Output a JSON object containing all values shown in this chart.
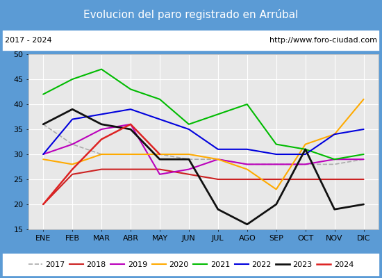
{
  "title": "Evolucion del paro registrado en Arrúbal",
  "subtitle_left": "2017 - 2024",
  "subtitle_right": "http://www.foro-ciudad.com",
  "months": [
    "ENE",
    "FEB",
    "MAR",
    "ABR",
    "MAY",
    "JUN",
    "JUL",
    "AGO",
    "SEP",
    "OCT",
    "NOV",
    "DIC"
  ],
  "ylim": [
    15,
    50
  ],
  "yticks": [
    15,
    20,
    25,
    30,
    35,
    40,
    45,
    50
  ],
  "series": {
    "2017": {
      "values": [
        36,
        32,
        30,
        30,
        30,
        29,
        29,
        28,
        28,
        28,
        28,
        29
      ],
      "color": "#aaaaaa",
      "linewidth": 1.2,
      "linestyle": "--"
    },
    "2018": {
      "values": [
        20,
        26,
        27,
        27,
        27,
        26,
        25,
        25,
        25,
        25,
        25,
        25
      ],
      "color": "#cc2222",
      "linewidth": 1.5,
      "linestyle": "-"
    },
    "2019": {
      "values": [
        30,
        32,
        35,
        36,
        26,
        27,
        29,
        28,
        28,
        28,
        29,
        29
      ],
      "color": "#bb00bb",
      "linewidth": 1.5,
      "linestyle": "-"
    },
    "2020": {
      "values": [
        29,
        28,
        30,
        30,
        30,
        30,
        29,
        27,
        23,
        32,
        34,
        41
      ],
      "color": "#ffaa00",
      "linewidth": 1.5,
      "linestyle": "-"
    },
    "2021": {
      "values": [
        42,
        45,
        47,
        43,
        41,
        36,
        38,
        40,
        32,
        31,
        29,
        30
      ],
      "color": "#00bb00",
      "linewidth": 1.5,
      "linestyle": "-"
    },
    "2022": {
      "values": [
        30,
        37,
        38,
        39,
        37,
        35,
        31,
        31,
        30,
        30,
        34,
        35
      ],
      "color": "#0000dd",
      "linewidth": 1.5,
      "linestyle": "-"
    },
    "2023": {
      "values": [
        36,
        39,
        36,
        35,
        29,
        29,
        19,
        16,
        20,
        31,
        19,
        20
      ],
      "color": "#111111",
      "linewidth": 2.0,
      "linestyle": "-"
    },
    "2024": {
      "values": [
        20,
        27,
        33,
        36,
        30,
        null,
        null,
        null,
        null,
        null,
        null,
        null
      ],
      "color": "#dd2222",
      "linewidth": 1.8,
      "linestyle": "-"
    }
  },
  "title_bg": "#5b9bd5",
  "title_color": "#ffffff",
  "title_fontsize": 11,
  "subtitle_fontsize": 8,
  "tick_fontsize": 8,
  "legend_fontsize": 8,
  "plot_bg": "#e8e8e8",
  "grid_color": "#ffffff",
  "border_color": "#5b9bd5",
  "fig_width": 5.5,
  "fig_height": 4.0,
  "fig_dpi": 100
}
